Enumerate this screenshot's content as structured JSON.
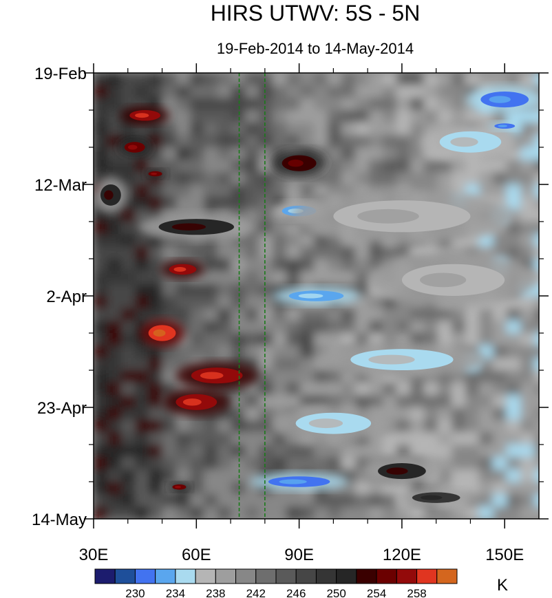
{
  "chart_data": {
    "type": "heatmap",
    "title": "HIRS UTWV: 5S - 5N",
    "subtitle": "19-Feb-2014 to 14-May-2014",
    "x_ticks": [
      {
        "value": 30,
        "label": "30E"
      },
      {
        "value": 60,
        "label": "60E"
      },
      {
        "value": 90,
        "label": "90E"
      },
      {
        "value": 120,
        "label": "120E"
      },
      {
        "value": 150,
        "label": "150E"
      }
    ],
    "xlim": [
      30,
      160
    ],
    "y_ticks": [
      {
        "value": "2014-02-19",
        "label": "19-Feb"
      },
      {
        "value": "2014-03-12",
        "label": "12-Mar"
      },
      {
        "value": "2014-04-02",
        "label": "2-Apr"
      },
      {
        "value": "2014-04-23",
        "label": "23-Apr"
      },
      {
        "value": "2014-05-14",
        "label": "14-May"
      }
    ],
    "ylim": [
      "2014-02-19",
      "2014-05-14"
    ],
    "reference_lines_x": [
      72.5,
      80
    ],
    "colorbar": {
      "unit": "K",
      "levels": [
        228,
        230,
        232,
        234,
        236,
        238,
        240,
        242,
        244,
        246,
        248,
        250,
        252,
        254,
        256,
        258,
        260
      ],
      "labels": [
        {
          "value": 230,
          "label": "230"
        },
        {
          "value": 234,
          "label": "234"
        },
        {
          "value": 238,
          "label": "238"
        },
        {
          "value": 242,
          "label": "242"
        },
        {
          "value": 246,
          "label": "246"
        },
        {
          "value": 250,
          "label": "250"
        },
        {
          "value": 254,
          "label": "254"
        },
        {
          "value": 258,
          "label": "258"
        }
      ],
      "colors": [
        "#1c1c6e",
        "#1e4f9a",
        "#4273f0",
        "#5aa6ee",
        "#a9daef",
        "#b5b5b5",
        "#9e9e9e",
        "#878787",
        "#6e6e6e",
        "#5a5a5a",
        "#464646",
        "#353535",
        "#262626",
        "#3a0000",
        "#6b0000",
        "#930a0a",
        "#e03520",
        "#d4661e"
      ]
    },
    "field_features": [
      {
        "lon": 45,
        "date": "2014-02-27",
        "value": 257,
        "w": 9,
        "h": 2
      },
      {
        "lon": 42,
        "date": "2014-03-05",
        "value": 255,
        "w": 6,
        "h": 2
      },
      {
        "lon": 48,
        "date": "2014-03-10",
        "value": 255,
        "w": 4,
        "h": 1
      },
      {
        "lon": 56,
        "date": "2014-03-28",
        "value": 257,
        "w": 8,
        "h": 2
      },
      {
        "lon": 50,
        "date": "2014-04-09",
        "value": 258,
        "w": 8,
        "h": 3
      },
      {
        "lon": 66,
        "date": "2014-04-17",
        "value": 256,
        "w": 15,
        "h": 3
      },
      {
        "lon": 60,
        "date": "2014-04-22",
        "value": 256,
        "w": 12,
        "h": 3
      },
      {
        "lon": 55,
        "date": "2014-05-08",
        "value": 255,
        "w": 4,
        "h": 1
      },
      {
        "lon": 90,
        "date": "2014-03-08",
        "value": 252,
        "w": 10,
        "h": 3
      },
      {
        "lon": 35,
        "date": "2014-03-14",
        "value": 250,
        "w": 6,
        "h": 4
      },
      {
        "lon": 60,
        "date": "2014-03-20",
        "value": 251,
        "w": 22,
        "h": 3
      },
      {
        "lon": 120,
        "date": "2014-05-05",
        "value": 250,
        "w": 14,
        "h": 3
      },
      {
        "lon": 130,
        "date": "2014-05-10",
        "value": 249,
        "w": 14,
        "h": 2
      },
      {
        "lon": 150,
        "date": "2014-02-24",
        "value": 231,
        "w": 14,
        "h": 3
      },
      {
        "lon": 140,
        "date": "2014-03-04",
        "value": 234,
        "w": 18,
        "h": 4
      },
      {
        "lon": 150,
        "date": "2014-03-01",
        "value": 231,
        "w": 6,
        "h": 1
      },
      {
        "lon": 90,
        "date": "2014-03-17",
        "value": 233,
        "w": 10,
        "h": 2
      },
      {
        "lon": 95,
        "date": "2014-04-02",
        "value": 232,
        "w": 16,
        "h": 2
      },
      {
        "lon": 120,
        "date": "2014-04-14",
        "value": 235,
        "w": 30,
        "h": 4
      },
      {
        "lon": 100,
        "date": "2014-04-26",
        "value": 235,
        "w": 22,
        "h": 4
      },
      {
        "lon": 90,
        "date": "2014-05-07",
        "value": 231,
        "w": 18,
        "h": 2
      },
      {
        "lon": 120,
        "date": "2014-03-18",
        "value": 236,
        "w": 40,
        "h": 6
      },
      {
        "lon": 135,
        "date": "2014-03-30",
        "value": 236,
        "w": 30,
        "h": 6
      }
    ]
  }
}
